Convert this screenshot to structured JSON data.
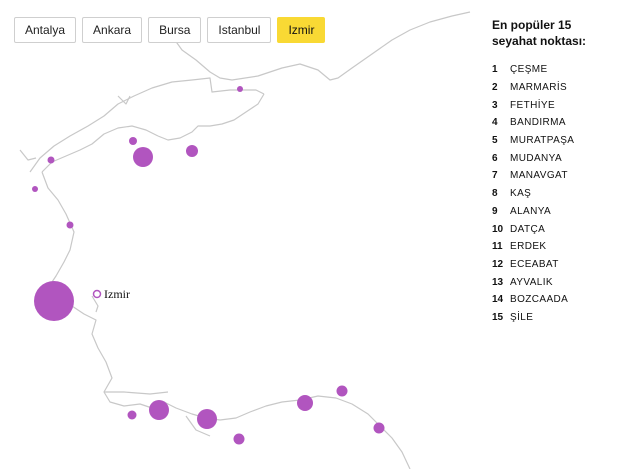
{
  "tabs": [
    {
      "label": "Antalya",
      "active": false
    },
    {
      "label": "Ankara",
      "active": false
    },
    {
      "label": "Bursa",
      "active": false
    },
    {
      "label": "Istanbul",
      "active": false
    },
    {
      "label": "Izmir",
      "active": true
    }
  ],
  "colors": {
    "active_tab": "#f9d934",
    "dot": "#b155bf",
    "coastline": "#c8c8c8"
  },
  "map": {
    "selected_city": "Izmir"
  },
  "legend": {
    "title": "En popüler 15 seyahat noktası:",
    "items": [
      {
        "rank": "1",
        "name": "ÇEŞME"
      },
      {
        "rank": "2",
        "name": "MARMARİS"
      },
      {
        "rank": "3",
        "name": "FETHİYE"
      },
      {
        "rank": "4",
        "name": "BANDIRMA"
      },
      {
        "rank": "5",
        "name": "MURATPAŞA"
      },
      {
        "rank": "6",
        "name": "MUDANYA"
      },
      {
        "rank": "7",
        "name": "MANAVGAT"
      },
      {
        "rank": "8",
        "name": "KAŞ"
      },
      {
        "rank": "9",
        "name": "ALANYA"
      },
      {
        "rank": "10",
        "name": "DATÇA"
      },
      {
        "rank": "11",
        "name": "ERDEK"
      },
      {
        "rank": "12",
        "name": "ECEABAT"
      },
      {
        "rank": "13",
        "name": "AYVALIK"
      },
      {
        "rank": "14",
        "name": "BOZCAADA"
      },
      {
        "rank": "15",
        "name": "ŞİLE"
      }
    ]
  }
}
